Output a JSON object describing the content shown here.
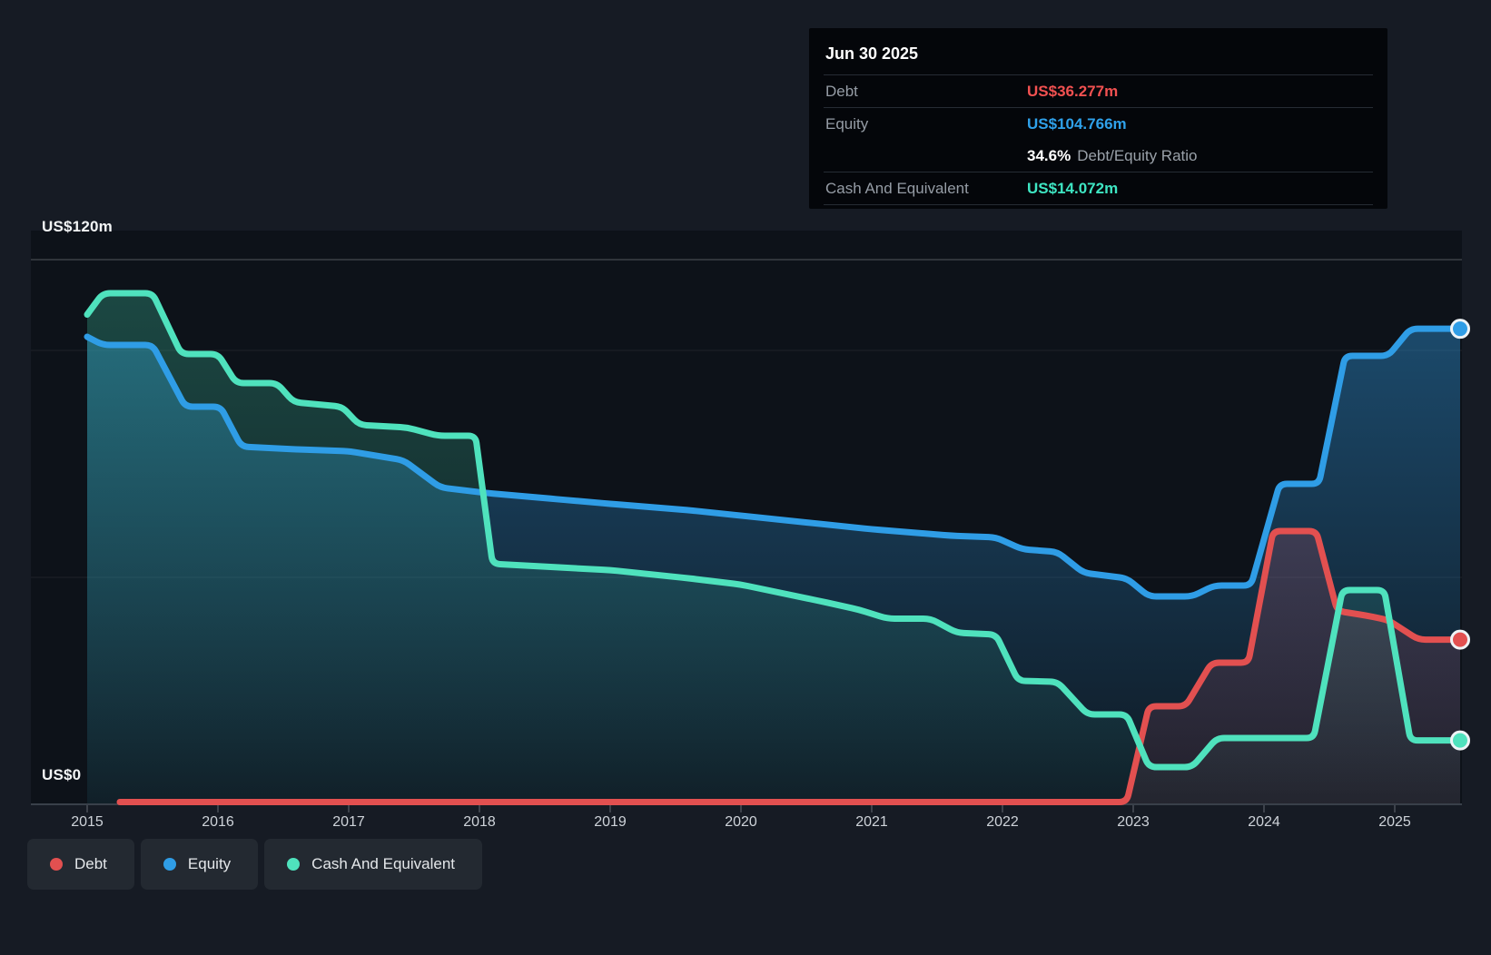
{
  "tooltip": {
    "title": "Jun 30 2025",
    "debt_label": "Debt",
    "debt_value": "US$36.277m",
    "equity_label": "Equity",
    "equity_value": "US$104.766m",
    "ratio_value": "34.6%",
    "ratio_label": "Debt/Equity Ratio",
    "cash_label": "Cash And Equivalent",
    "cash_value": "US$14.072m"
  },
  "y_axis": {
    "top_label": "US$120m",
    "zero_label": "US$0"
  },
  "legend": [
    {
      "id": "debt",
      "label": "Debt"
    },
    {
      "id": "equity",
      "label": "Equity"
    },
    {
      "id": "cash",
      "label": "Cash And Equivalent"
    }
  ],
  "colors": {
    "debt": "#e25050",
    "equity": "#2f9de6",
    "cash": "#4fe2bd",
    "axis": "#39404a",
    "grid_major": "rgba(255,255,255,0.20)",
    "grid_minor": "rgba(255,255,255,0.07)",
    "plot_bg": "#0d1219",
    "page_bg": "#161b24"
  },
  "chart_data": {
    "type": "area",
    "title": "Debt to Equity History",
    "unit": "US$m",
    "ylim": [
      0,
      120
    ],
    "xlim": [
      2015,
      2025.5
    ],
    "grid": "horizontal-only",
    "gridline_values": [
      120,
      100,
      50,
      0
    ],
    "x_ticks": [
      "2015",
      "2016",
      "2017",
      "2018",
      "2019",
      "2020",
      "2021",
      "2022",
      "2023",
      "2024",
      "2025"
    ],
    "legend_position": "bottom-left",
    "end_values": {
      "debt": 36.277,
      "equity": 104.766,
      "cash": 14.072
    },
    "series": [
      {
        "id": "equity",
        "name": "Equity",
        "points": [
          [
            2015.0,
            103
          ],
          [
            2015.12,
            101.2
          ],
          [
            2015.5,
            101.2
          ],
          [
            2015.75,
            87.6
          ],
          [
            2016.02,
            87.6
          ],
          [
            2016.18,
            78.8
          ],
          [
            2016.6,
            78.2
          ],
          [
            2017.0,
            77.8
          ],
          [
            2017.42,
            75.8
          ],
          [
            2017.7,
            69.8
          ],
          [
            2018.05,
            68.6
          ],
          [
            2018.6,
            67.2
          ],
          [
            2019.0,
            66.2
          ],
          [
            2019.6,
            64.8
          ],
          [
            2020.0,
            63.6
          ],
          [
            2020.6,
            61.8
          ],
          [
            2021.0,
            60.6
          ],
          [
            2021.6,
            59.2
          ],
          [
            2021.95,
            58.8
          ],
          [
            2022.15,
            56.2
          ],
          [
            2022.42,
            55.6
          ],
          [
            2022.62,
            51.0
          ],
          [
            2022.95,
            49.8
          ],
          [
            2023.12,
            45.8
          ],
          [
            2023.45,
            45.8
          ],
          [
            2023.62,
            48.2
          ],
          [
            2023.9,
            48.2
          ],
          [
            2024.12,
            70.6
          ],
          [
            2024.42,
            70.6
          ],
          [
            2024.62,
            98.8
          ],
          [
            2024.95,
            98.8
          ],
          [
            2025.12,
            104.766
          ],
          [
            2025.5,
            104.766
          ]
        ]
      },
      {
        "id": "cash",
        "name": "Cash And Equivalent",
        "points": [
          [
            2015.0,
            107.9
          ],
          [
            2015.12,
            112.6
          ],
          [
            2015.5,
            112.6
          ],
          [
            2015.72,
            99.2
          ],
          [
            2016.0,
            99.2
          ],
          [
            2016.14,
            92.8
          ],
          [
            2016.45,
            92.8
          ],
          [
            2016.58,
            88.6
          ],
          [
            2016.95,
            87.6
          ],
          [
            2017.08,
            83.6
          ],
          [
            2017.45,
            83.0
          ],
          [
            2017.68,
            81.2
          ],
          [
            2017.97,
            81.2
          ],
          [
            2018.1,
            53.0
          ],
          [
            2018.6,
            52.2
          ],
          [
            2019.0,
            51.6
          ],
          [
            2019.6,
            49.8
          ],
          [
            2020.0,
            48.4
          ],
          [
            2020.6,
            44.8
          ],
          [
            2020.9,
            42.9
          ],
          [
            2021.12,
            40.9
          ],
          [
            2021.45,
            40.9
          ],
          [
            2021.65,
            37.8
          ],
          [
            2021.95,
            37.4
          ],
          [
            2022.12,
            27.2
          ],
          [
            2022.42,
            27.0
          ],
          [
            2022.65,
            19.8
          ],
          [
            2022.95,
            19.8
          ],
          [
            2023.12,
            8.2
          ],
          [
            2023.45,
            8.2
          ],
          [
            2023.64,
            14.6
          ],
          [
            2024.38,
            14.6
          ],
          [
            2024.6,
            47.2
          ],
          [
            2024.92,
            47.2
          ],
          [
            2025.12,
            14.072
          ],
          [
            2025.5,
            14.072
          ]
        ]
      },
      {
        "id": "debt",
        "name": "Debt",
        "points": [
          [
            2015.25,
            0.5
          ],
          [
            2022.95,
            0.5
          ],
          [
            2023.12,
            21.6
          ],
          [
            2023.4,
            21.6
          ],
          [
            2023.6,
            31.2
          ],
          [
            2023.88,
            31.2
          ],
          [
            2024.07,
            60.2
          ],
          [
            2024.4,
            60.2
          ],
          [
            2024.56,
            42.6
          ],
          [
            2024.78,
            41.6
          ],
          [
            2024.95,
            40.6
          ],
          [
            2025.18,
            36.277
          ],
          [
            2025.5,
            36.277
          ]
        ]
      }
    ]
  }
}
